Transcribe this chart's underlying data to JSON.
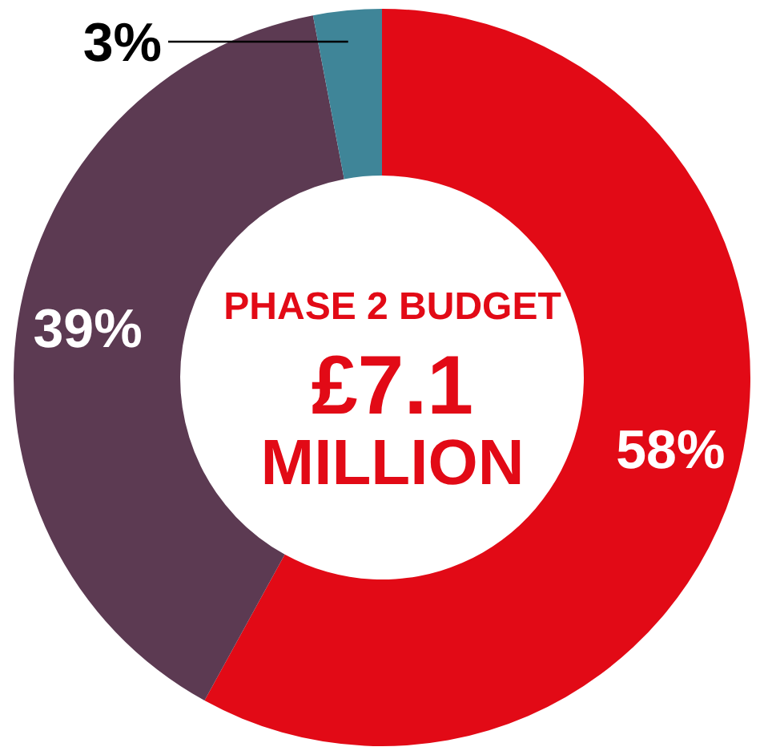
{
  "chart_data": {
    "type": "donut",
    "categories": [
      null,
      null,
      null
    ],
    "values": [
      58,
      39,
      3
    ],
    "colors": [
      "#e20a16",
      "#5c3a52",
      "#3f8598"
    ],
    "value_labels": [
      "58%",
      "39%",
      "3%"
    ],
    "annotations": [
      "PHASE 2 BUDGET",
      "£7.1",
      "MILLION"
    ]
  }
}
